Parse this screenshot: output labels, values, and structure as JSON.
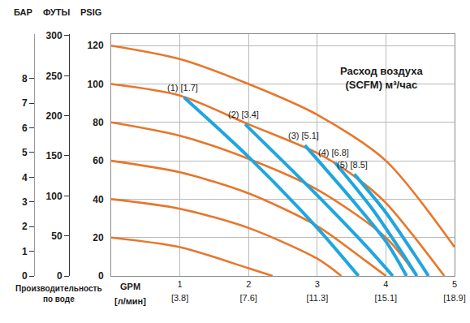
{
  "chart_data": {
    "type": "line",
    "title": "Расход воздуха\n(SCFM) м³/час",
    "xlabel": "GPM",
    "x2label": "[л/мин]",
    "xlabel_note": "Производительность\nпо воде",
    "ylabel": "PSIG",
    "y2label": "ФУТЫ",
    "y3label": "БАР",
    "xlim": [
      0,
      5
    ],
    "xticks": [
      1,
      2,
      3,
      4,
      5
    ],
    "x2lim": [
      0,
      18.93
    ],
    "x2ticks": [
      {
        "value": 3.785,
        "label": "[3.8]"
      },
      {
        "value": 7.57,
        "label": "[7.6]"
      },
      {
        "value": 11.36,
        "label": "[11.3]"
      },
      {
        "value": 15.14,
        "label": "[15.1]"
      },
      {
        "value": 18.93,
        "label": "[18.9]"
      }
    ],
    "ylim": [
      0,
      126
    ],
    "yticks": [
      0,
      20,
      40,
      60,
      80,
      100,
      120
    ],
    "y2lim": [
      0,
      302
    ],
    "y2ticks": [
      0,
      50,
      100,
      150,
      200,
      250,
      300
    ],
    "y3lim": [
      0,
      9.8
    ],
    "y3ticks": [
      0,
      1,
      2,
      3,
      4,
      5,
      6,
      7,
      8
    ],
    "grid": true,
    "series": [
      {
        "color": "#e8762b",
        "x": [
          0,
          1,
          2,
          3,
          4,
          5
        ],
        "values": [
          120,
          113,
          100,
          84,
          60,
          15
        ]
      },
      {
        "color": "#e8762b",
        "x": [
          0,
          1,
          2,
          3,
          3.5,
          4,
          4.85
        ],
        "values": [
          100,
          94,
          79,
          64,
          53,
          38,
          0
        ]
      },
      {
        "color": "#e8762b",
        "x": [
          0,
          1,
          2,
          3,
          4,
          4.45
        ],
        "values": [
          80,
          73,
          61,
          45,
          20,
          0
        ]
      },
      {
        "color": "#e8762b",
        "x": [
          0,
          1,
          2,
          3,
          3.7,
          4.0
        ],
        "values": [
          60,
          54,
          43,
          26,
          8,
          0
        ]
      },
      {
        "color": "#e8762b",
        "x": [
          0,
          1,
          2,
          3,
          3.35
        ],
        "values": [
          40,
          35,
          25,
          9,
          0
        ]
      },
      {
        "color": "#e8762b",
        "x": [
          0,
          1,
          2,
          2.35
        ],
        "values": [
          20,
          15,
          4,
          0
        ]
      },
      {
        "name": "(1) [1.7]",
        "color": "#1fa6de",
        "x": [
          1.06,
          2,
          3,
          3.6
        ],
        "values": [
          93,
          62,
          25,
          0
        ]
      },
      {
        "name": "(2) [3.4]",
        "color": "#1fa6de",
        "x": [
          1.95,
          3,
          3.7,
          4.1
        ],
        "values": [
          79,
          42,
          16,
          0
        ]
      },
      {
        "name": "(3) [5.1]",
        "color": "#1fa6de",
        "x": [
          2.82,
          3.5,
          4,
          4.3
        ],
        "values": [
          68,
          40,
          18,
          0
        ]
      },
      {
        "name": "(4) [6.8]",
        "color": "#1fa6de",
        "x": [
          3.26,
          3.8,
          4.2,
          4.45
        ],
        "values": [
          59,
          35,
          14,
          0
        ]
      },
      {
        "name": "(5) [8.5]",
        "color": "#1fa6de",
        "x": [
          3.54,
          4,
          4.4,
          4.62
        ],
        "values": [
          53,
          33,
          12,
          0
        ]
      }
    ]
  }
}
